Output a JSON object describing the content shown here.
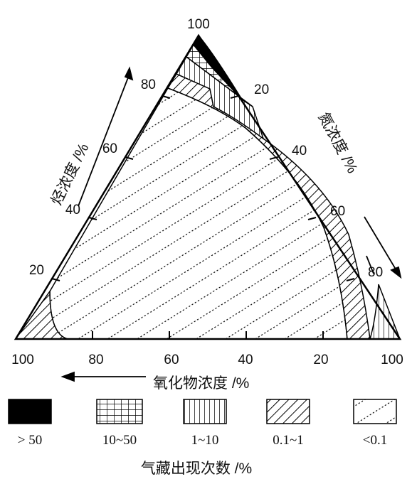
{
  "top_tick": "100",
  "axes": {
    "hydrocarbon": {
      "title": "烃浓度 /%",
      "ticks": [
        "20",
        "40",
        "60",
        "80"
      ]
    },
    "nitrogen": {
      "title": "氮浓度 /%",
      "ticks": [
        "20",
        "40",
        "60",
        "80"
      ]
    },
    "oxide": {
      "title": "氧化物浓度 /%",
      "ticks": [
        "100",
        "80",
        "60",
        "40",
        "20",
        "100"
      ]
    }
  },
  "zones": [
    {
      "pattern": "solid-black"
    },
    {
      "pattern": "grid"
    },
    {
      "pattern": "vertical-lines"
    },
    {
      "pattern": "diagonal-hatch"
    },
    {
      "pattern": "dotted-diagonal"
    }
  ],
  "legend": {
    "title": "气藏出现次数 /%",
    "items": [
      {
        "label": "> 50",
        "pattern": "solid-black"
      },
      {
        "label": "10~50",
        "pattern": "grid"
      },
      {
        "label": "1~10",
        "pattern": "vertical-lines"
      },
      {
        "label": "0.1~1",
        "pattern": "diagonal-hatch"
      },
      {
        "label": "<0.1",
        "pattern": "dotted-diagonal"
      }
    ]
  }
}
